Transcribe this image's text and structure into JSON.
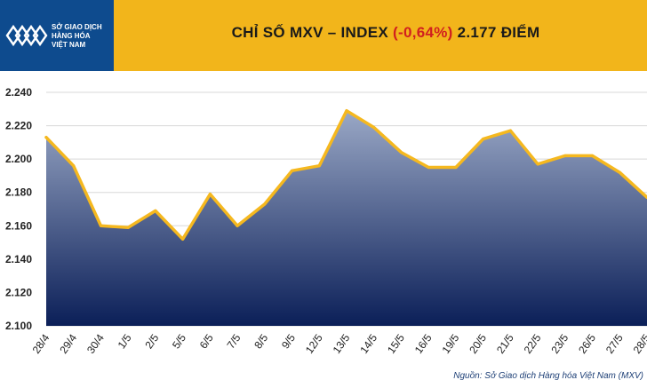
{
  "header": {
    "logo_lines": [
      "SỞ GIAO DỊCH",
      "HÀNG HÓA",
      "VIỆT NAM"
    ],
    "title_prefix": "CHỈ SỐ MXV – INDEX",
    "title_change": "(-0,64%)",
    "title_suffix": "2.177 ĐIỂM"
  },
  "colors": {
    "header_bg": "#f2b51b",
    "logo_bg": "#0e4b8e",
    "line": "#f5b81f",
    "area_top": "#9aa8c6",
    "area_bottom": "#0b1f58",
    "change_text": "#d1201f"
  },
  "chart_data": {
    "type": "area",
    "title": "CHỈ SỐ MXV – INDEX (-0,64%) 2.177 ĐIỂM",
    "categories": [
      "28/4",
      "29/4",
      "30/4",
      "1/5",
      "2/5",
      "5/5",
      "6/5",
      "7/5",
      "8/5",
      "9/5",
      "12/5",
      "13/5",
      "14/5",
      "15/5",
      "16/5",
      "19/5",
      "20/5",
      "21/5",
      "22/5",
      "23/5",
      "26/5",
      "27/5",
      "28/5"
    ],
    "series": [
      {
        "values": [
          2213,
          2196,
          2160,
          2159,
          2169,
          2152,
          2179,
          2160,
          2173,
          2193,
          2196,
          2229,
          2219,
          2204,
          2195,
          2195,
          2212,
          2217,
          2197,
          2202,
          2202,
          2192,
          2177
        ]
      }
    ],
    "y_ticks": [
      "2.100",
      "2.120",
      "2.140",
      "2.160",
      "2.180",
      "2.200",
      "2.220",
      "2.240"
    ],
    "ylim": [
      2100,
      2240
    ],
    "grid": true,
    "source": "Nguồn: Sở Giao dịch Hàng hóa Việt Nam (MXV)"
  }
}
